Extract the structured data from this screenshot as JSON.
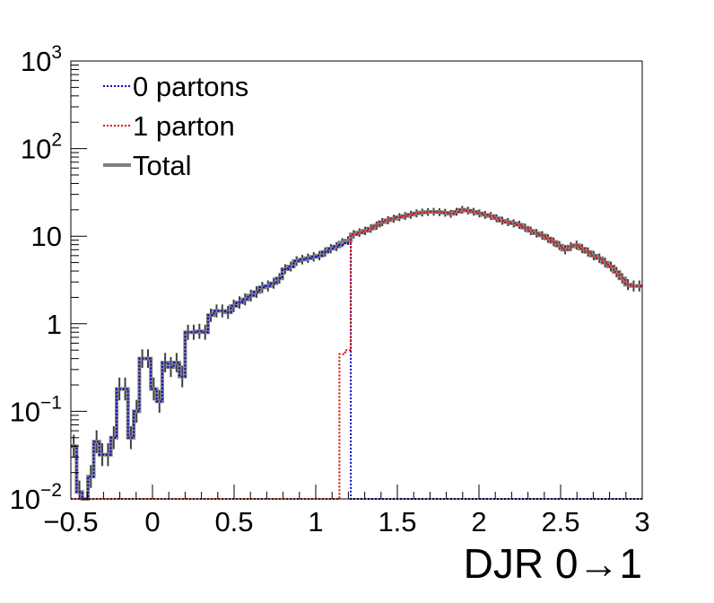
{
  "chart_data": {
    "type": "line",
    "step": true,
    "xlabel": "DJR 0→1",
    "ylabel": "",
    "xlim": [
      -0.5,
      3.0
    ],
    "ylim": [
      0.01,
      1000
    ],
    "yscale": "log",
    "x_ticks": [
      -0.5,
      0,
      0.5,
      1,
      1.5,
      2,
      2.5,
      3
    ],
    "x_tick_labels": [
      "−0.5",
      "0",
      "0.5",
      "1",
      "1.5",
      "2",
      "2.5",
      "3"
    ],
    "y_ticks": [
      {
        "value": 0.01,
        "base": "10",
        "exp": "−2"
      },
      {
        "value": 0.1,
        "base": "10",
        "exp": "−1"
      },
      {
        "value": 1,
        "base": "1",
        "exp": ""
      },
      {
        "value": 10,
        "base": "10",
        "exp": ""
      },
      {
        "value": 100,
        "base": "10",
        "exp": "2"
      },
      {
        "value": 1000,
        "base": "10",
        "exp": "3"
      }
    ],
    "legend_position": "top-left",
    "legend": [
      {
        "label": "0 partons",
        "color": "#0000cc",
        "style": "dotted"
      },
      {
        "label": "1 parton",
        "color": "#dd0000",
        "style": "dotted"
      },
      {
        "label": "Total",
        "color": "#808080",
        "style": "solid"
      }
    ],
    "bin_width": 0.035,
    "bin_start": -0.5,
    "series": [
      {
        "name": "0 partons",
        "color": "#0000cc",
        "values": [
          0.04,
          0.012,
          0.01,
          0.018,
          0.045,
          0.032,
          0.032,
          0.05,
          0.18,
          0.18,
          0.05,
          0.1,
          0.4,
          0.4,
          0.18,
          0.13,
          0.36,
          0.32,
          0.36,
          0.25,
          0.8,
          0.8,
          0.82,
          0.8,
          1.25,
          1.4,
          1.4,
          1.35,
          1.6,
          1.75,
          1.9,
          2.1,
          2.3,
          2.6,
          2.7,
          2.9,
          3.3,
          4.2,
          4.5,
          5.2,
          5.4,
          5.6,
          5.8,
          6.0,
          6.6,
          7.2,
          7.6,
          8.0,
          8.4,
          0.01,
          0.01,
          0.01,
          0.01,
          0.01,
          0.01,
          0.01,
          0.01,
          0.01,
          0.01,
          0.01,
          0.01,
          0.01,
          0.01,
          0.01,
          0.01,
          0.01,
          0.01,
          0.01,
          0.01,
          0.01,
          0.01,
          0.01,
          0.01,
          0.01,
          0.01,
          0.01,
          0.01,
          0.01,
          0.01,
          0.01,
          0.01,
          0.01,
          0.01,
          0.01,
          0.01,
          0.01,
          0.01,
          0.01,
          0.01,
          0.01,
          0.01,
          0.01,
          0.01,
          0.01,
          0.01,
          0.01,
          0.01,
          0.01,
          0.01,
          0.01
        ]
      },
      {
        "name": "1 parton",
        "color": "#dd0000",
        "values": [
          0.01,
          0.01,
          0.01,
          0.01,
          0.01,
          0.01,
          0.01,
          0.01,
          0.01,
          0.01,
          0.01,
          0.01,
          0.01,
          0.01,
          0.01,
          0.01,
          0.01,
          0.01,
          0.01,
          0.01,
          0.01,
          0.01,
          0.01,
          0.01,
          0.01,
          0.01,
          0.01,
          0.01,
          0.01,
          0.01,
          0.01,
          0.01,
          0.01,
          0.01,
          0.01,
          0.01,
          0.01,
          0.01,
          0.01,
          0.01,
          0.01,
          0.01,
          0.01,
          0.01,
          0.01,
          0.01,
          0.01,
          0.45,
          0.5,
          10.5,
          11.0,
          11.5,
          12.2,
          13.2,
          14.5,
          15.2,
          15.8,
          16.5,
          17.0,
          17.6,
          18.2,
          18.6,
          18.9,
          19.0,
          18.8,
          18.5,
          18.0,
          19.0,
          20.0,
          19.6,
          19.0,
          18.2,
          17.5,
          17.0,
          16.0,
          15.0,
          14.5,
          14.0,
          13.5,
          12.5,
          11.5,
          10.8,
          10.2,
          9.4,
          8.6,
          7.8,
          7.0,
          7.6,
          7.9,
          7.2,
          6.6,
          6.0,
          5.6,
          5.0,
          4.5,
          3.9,
          3.3,
          2.8,
          2.7,
          2.7
        ]
      },
      {
        "name": "Total",
        "color": "#808080",
        "values": [
          0.04,
          0.012,
          0.01,
          0.018,
          0.045,
          0.032,
          0.032,
          0.05,
          0.18,
          0.18,
          0.05,
          0.1,
          0.4,
          0.4,
          0.18,
          0.13,
          0.36,
          0.32,
          0.36,
          0.25,
          0.8,
          0.8,
          0.82,
          0.8,
          1.25,
          1.4,
          1.4,
          1.35,
          1.6,
          1.75,
          1.9,
          2.1,
          2.3,
          2.6,
          2.7,
          2.9,
          3.3,
          4.2,
          4.5,
          5.2,
          5.4,
          5.6,
          5.8,
          6.0,
          6.6,
          7.2,
          7.6,
          8.45,
          8.9,
          10.5,
          11.0,
          11.5,
          12.2,
          13.2,
          14.5,
          15.2,
          15.8,
          16.5,
          17.0,
          17.6,
          18.2,
          18.6,
          18.9,
          19.0,
          18.8,
          18.5,
          18.0,
          19.0,
          20.0,
          19.6,
          19.0,
          18.2,
          17.5,
          17.0,
          16.0,
          15.0,
          14.5,
          14.0,
          13.5,
          12.5,
          11.5,
          10.8,
          10.2,
          9.4,
          8.6,
          7.8,
          7.0,
          7.6,
          7.9,
          7.2,
          6.6,
          6.0,
          5.6,
          5.0,
          4.5,
          3.9,
          3.3,
          2.8,
          2.7,
          2.7
        ]
      }
    ]
  }
}
